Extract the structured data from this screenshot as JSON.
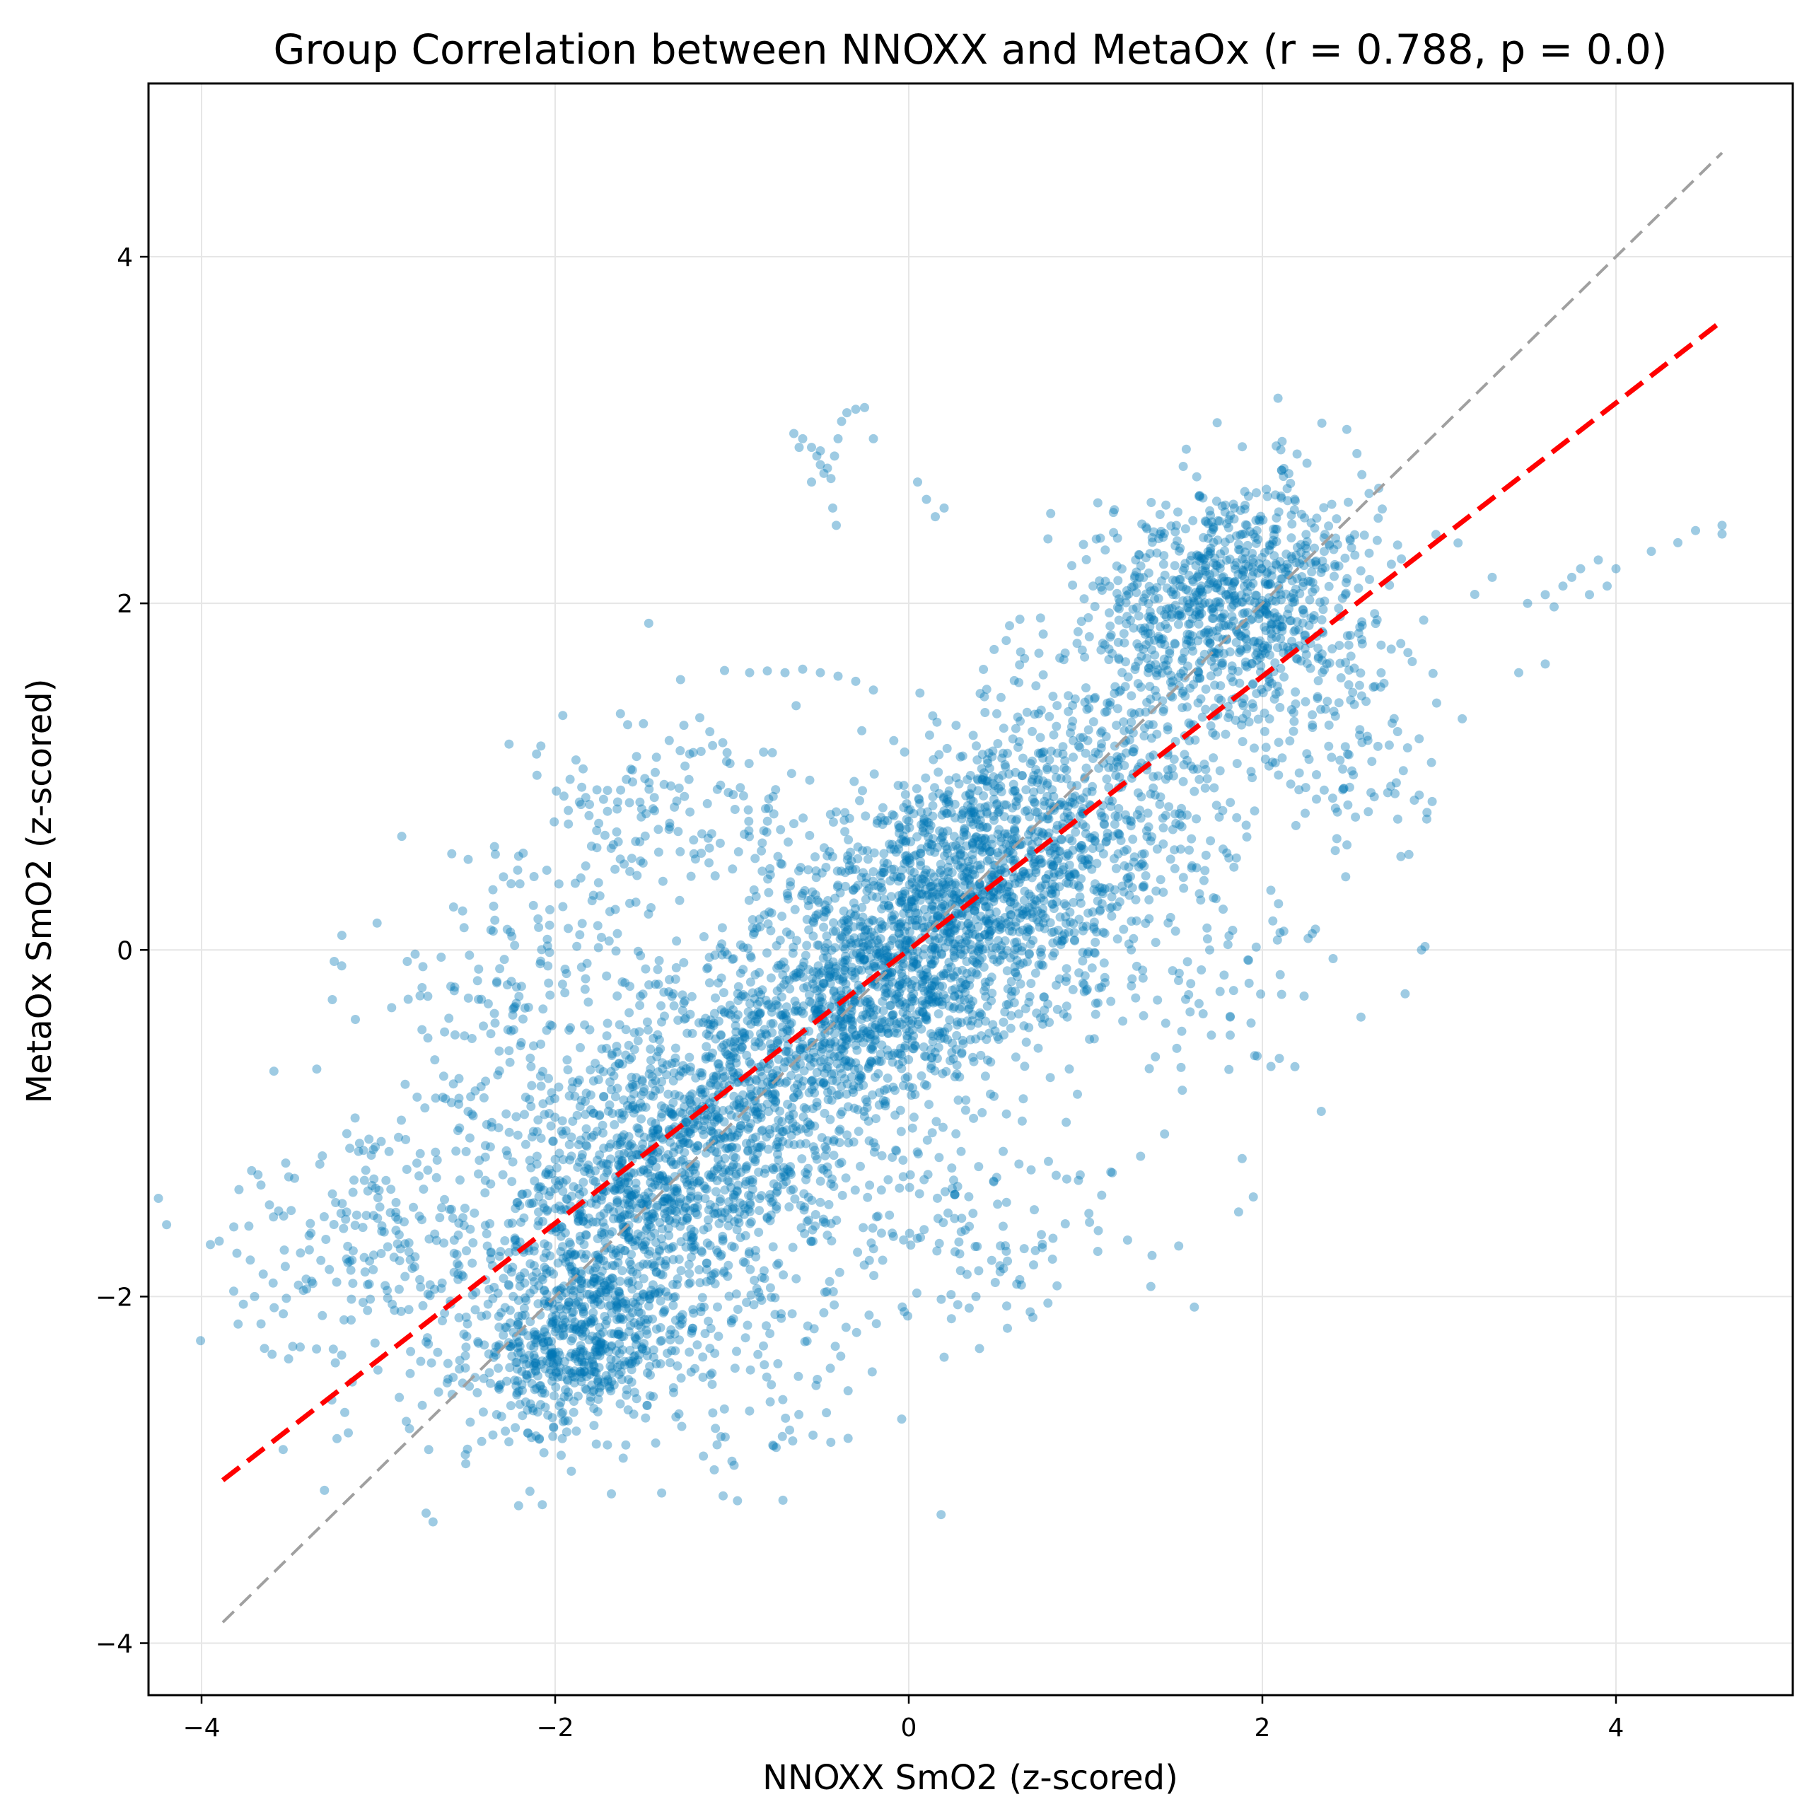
{
  "chart_data": {
    "type": "scatter",
    "title": "Group Correlation between NNOXX and MetaOx (r = 0.788, p = 0.0)",
    "xlabel": "NNOXX SmO2 (z-scored)",
    "ylabel": "MetaOx SmO2 (z-scored)",
    "xlim": [
      -4.3,
      5.0
    ],
    "ylim": [
      -4.3,
      5.0
    ],
    "xticks": [
      -4,
      -2,
      0,
      2,
      4
    ],
    "yticks": [
      -4,
      -2,
      0,
      2,
      4
    ],
    "xtick_labels": [
      "−4",
      "−2",
      "0",
      "2",
      "4"
    ],
    "ytick_labels": [
      "−4",
      "−2",
      "0",
      "2",
      "4"
    ],
    "grid": true,
    "colors": {
      "points": "#0077b6",
      "fit_line": "#ff0000",
      "identity_line": "#a0a0a0"
    },
    "correlation": {
      "r": 0.788,
      "p": 0.0
    },
    "fit_line": {
      "x": [
        -3.88,
        4.6
      ],
      "y": [
        -3.06,
        3.63
      ]
    },
    "identity_line": {
      "x": [
        -3.88,
        4.6
      ],
      "y": [
        -3.88,
        4.6
      ]
    },
    "clusters": [
      {
        "x": 0.0,
        "y": 0.0,
        "sx": 0.7,
        "sy": 0.7,
        "rho": 0.7,
        "n": 2600
      },
      {
        "x": -1.5,
        "y": -1.5,
        "sx": 0.5,
        "sy": 0.55,
        "rho": 0.45,
        "n": 1300
      },
      {
        "x": 1.8,
        "y": 2.0,
        "sx": 0.4,
        "sy": 0.35,
        "rho": 0.2,
        "n": 900
      },
      {
        "x": -1.9,
        "y": -2.3,
        "sx": 0.25,
        "sy": 0.25,
        "rho": 0.2,
        "n": 400
      },
      {
        "x": -2.2,
        "y": -0.3,
        "sx": 0.5,
        "sy": 0.5,
        "rho": 0.3,
        "n": 250
      },
      {
        "x": -3.0,
        "y": -1.7,
        "sx": 0.5,
        "sy": 0.4,
        "rho": 0.2,
        "n": 220
      },
      {
        "x": 1.0,
        "y": 0.5,
        "sx": 0.5,
        "sy": 0.4,
        "rho": 0.3,
        "n": 300
      },
      {
        "x": 2.5,
        "y": 1.2,
        "sx": 0.3,
        "sy": 0.4,
        "rho": 0.0,
        "n": 120
      },
      {
        "x": -1.3,
        "y": 0.8,
        "sx": 0.4,
        "sy": 0.3,
        "rho": 0.2,
        "n": 150
      },
      {
        "x": 0.3,
        "y": -1.6,
        "sx": 0.5,
        "sy": 0.3,
        "rho": 0.2,
        "n": 150
      },
      {
        "x": 1.5,
        "y": -0.2,
        "sx": 0.5,
        "sy": 0.3,
        "rho": 0.0,
        "n": 90
      },
      {
        "x": -0.9,
        "y": -2.4,
        "sx": 0.4,
        "sy": 0.3,
        "rho": 0.0,
        "n": 90
      }
    ],
    "outlier_points": [
      {
        "x": -0.65,
        "y": 2.98
      },
      {
        "x": -0.6,
        "y": 2.95
      },
      {
        "x": -0.55,
        "y": 2.9
      },
      {
        "x": -0.52,
        "y": 2.85
      },
      {
        "x": -0.5,
        "y": 2.8
      },
      {
        "x": -0.48,
        "y": 2.75
      },
      {
        "x": -0.46,
        "y": 2.78
      },
      {
        "x": -0.44,
        "y": 2.72
      },
      {
        "x": -0.42,
        "y": 2.85
      },
      {
        "x": -0.4,
        "y": 2.95
      },
      {
        "x": -0.38,
        "y": 3.05
      },
      {
        "x": -0.35,
        "y": 3.1
      },
      {
        "x": -0.3,
        "y": 3.12
      },
      {
        "x": -0.25,
        "y": 3.13
      },
      {
        "x": -0.43,
        "y": 2.55
      },
      {
        "x": -0.41,
        "y": 2.45
      },
      {
        "x": -0.2,
        "y": 2.95
      },
      {
        "x": 0.05,
        "y": 2.7
      },
      {
        "x": 0.1,
        "y": 2.6
      },
      {
        "x": 0.15,
        "y": 2.5
      },
      {
        "x": 0.2,
        "y": 2.55
      },
      {
        "x": -0.55,
        "y": 2.7
      },
      {
        "x": -0.62,
        "y": 2.9
      },
      {
        "x": -0.5,
        "y": 2.88
      },
      {
        "x": 3.5,
        "y": 2.0
      },
      {
        "x": 3.6,
        "y": 2.05
      },
      {
        "x": 3.65,
        "y": 1.98
      },
      {
        "x": 3.7,
        "y": 2.1
      },
      {
        "x": 3.75,
        "y": 2.15
      },
      {
        "x": 3.8,
        "y": 2.2
      },
      {
        "x": 3.85,
        "y": 2.05
      },
      {
        "x": 3.9,
        "y": 2.25
      },
      {
        "x": 3.95,
        "y": 2.1
      },
      {
        "x": 4.0,
        "y": 2.2
      },
      {
        "x": 4.2,
        "y": 2.3
      },
      {
        "x": 4.35,
        "y": 2.35
      },
      {
        "x": 4.45,
        "y": 2.42
      },
      {
        "x": 4.6,
        "y": 2.45
      },
      {
        "x": 4.6,
        "y": 2.4
      },
      {
        "x": 3.3,
        "y": 2.15
      },
      {
        "x": 3.45,
        "y": 1.6
      },
      {
        "x": 3.6,
        "y": 1.65
      },
      {
        "x": 2.9,
        "y": 0.0
      },
      {
        "x": 2.92,
        "y": 0.02
      },
      {
        "x": 2.4,
        "y": -0.05
      },
      {
        "x": 2.1,
        "y": 0.1
      },
      {
        "x": 2.3,
        "y": 0.12
      },
      {
        "x": -3.95,
        "y": -1.7
      },
      {
        "x": -3.9,
        "y": -1.68
      },
      {
        "x": -3.8,
        "y": -1.75
      },
      {
        "x": -3.7,
        "y": -2.0
      },
      {
        "x": -1.05,
        "y": -3.15
      },
      {
        "x": -1.1,
        "y": -3.0
      },
      {
        "x": -1.0,
        "y": -2.95
      },
      {
        "x": 0.2,
        "y": -2.35
      },
      {
        "x": 0.4,
        "y": -2.3
      },
      {
        "x": 0.38,
        "y": -2.0
      },
      {
        "x": -0.5,
        "y": 1.6
      },
      {
        "x": -0.6,
        "y": 1.62
      },
      {
        "x": -0.8,
        "y": 1.61
      },
      {
        "x": -0.7,
        "y": 1.6
      },
      {
        "x": -0.9,
        "y": 1.6
      },
      {
        "x": -0.4,
        "y": 1.58
      },
      {
        "x": -0.3,
        "y": 1.55
      },
      {
        "x": -0.2,
        "y": 1.5
      }
    ]
  }
}
